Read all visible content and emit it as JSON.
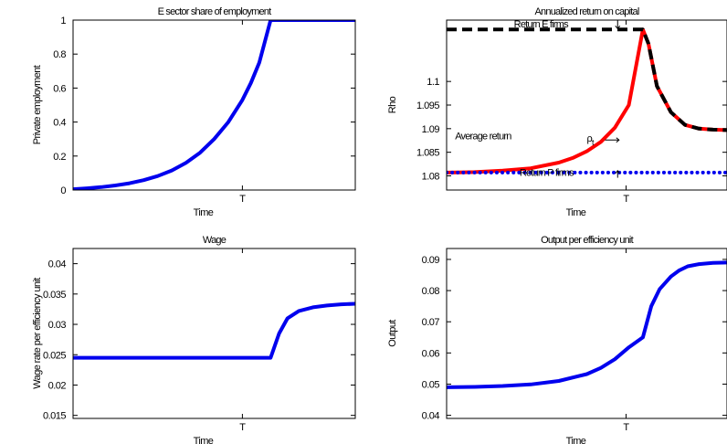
{
  "chart_data": [
    {
      "type": "line",
      "title": "E sector share of employment",
      "xlabel": "Time",
      "ylabel": "Private employment",
      "x_tick_labels": [
        "T"
      ],
      "xlim": [
        0,
        1
      ],
      "ylim": [
        0,
        1
      ],
      "yticks": [
        0,
        0.2,
        0.4,
        0.6,
        0.8,
        1
      ],
      "ytick_labels": [
        "0",
        "0.2",
        "0.4",
        "0.6",
        "0.8",
        "1"
      ],
      "series": [
        {
          "color": "#0000ee",
          "x": [
            0,
            0.05,
            0.1,
            0.15,
            0.2,
            0.25,
            0.3,
            0.35,
            0.4,
            0.45,
            0.5,
            0.55,
            0.6,
            0.63,
            0.66,
            0.7,
            0.8,
            0.9,
            1.0
          ],
          "y": [
            0.005,
            0.01,
            0.017,
            0.027,
            0.04,
            0.058,
            0.082,
            0.115,
            0.16,
            0.22,
            0.3,
            0.4,
            0.53,
            0.63,
            0.75,
            1.0,
            1.0,
            1.0,
            1.0
          ]
        }
      ]
    },
    {
      "type": "line",
      "title": "Annualized return on capital",
      "xlabel": "Time",
      "ylabel": "Rho",
      "x_tick_labels": [
        "T"
      ],
      "xlim": [
        0,
        1
      ],
      "ylim": [
        1.077,
        1.113
      ],
      "yticks": [
        1.08,
        1.085,
        1.09,
        1.095,
        1.1
      ],
      "ytick_labels": [
        "1.08",
        "1.085",
        "1.09",
        "1.095",
        "1.1"
      ],
      "series": [
        {
          "color": "#ff0000",
          "x": [
            0,
            0.1,
            0.2,
            0.3,
            0.4,
            0.45,
            0.5,
            0.55,
            0.6,
            0.65,
            0.7,
            0.72,
            0.75,
            0.8,
            0.85,
            0.9,
            0.95,
            1.0
          ],
          "y": [
            1.0807,
            1.0808,
            1.0811,
            1.0816,
            1.0828,
            1.0838,
            1.0852,
            1.0872,
            1.0902,
            1.095,
            1.111,
            1.108,
            1.099,
            1.0935,
            1.0908,
            1.09,
            1.0898,
            1.0897
          ]
        },
        {
          "color": "#000000",
          "x": [
            0,
            0.7,
            0.72,
            0.75,
            0.8,
            0.85,
            0.9,
            0.95,
            1.0
          ],
          "y": [
            1.111,
            1.111,
            1.108,
            1.099,
            1.0935,
            1.0908,
            1.09,
            1.0898,
            1.0897
          ]
        },
        {
          "color": "#0000ee",
          "x": [
            0,
            1
          ],
          "y": [
            1.0807,
            1.0807
          ]
        }
      ],
      "annotations": [
        {
          "text": "Return E firms",
          "x": 0.24,
          "y": 1.1115
        },
        {
          "text": "Average return",
          "x": 0.03,
          "y": 1.0877
        },
        {
          "text": "ρ",
          "sub": "t",
          "x": 0.5,
          "y": 1.0873
        },
        {
          "text": "Return P firms",
          "x": 0.26,
          "y": 1.08
        }
      ]
    },
    {
      "type": "line",
      "title": "Wage",
      "xlabel": "Time",
      "ylabel": "Wage rate per efficiency unit",
      "x_tick_labels": [
        "T"
      ],
      "xlim": [
        0,
        1
      ],
      "ylim": [
        0.0145,
        0.0425
      ],
      "yticks": [
        0.015,
        0.02,
        0.025,
        0.03,
        0.035,
        0.04
      ],
      "ytick_labels": [
        "0.015",
        "0.02",
        "0.025",
        "0.03",
        "0.035",
        "0.04"
      ],
      "series": [
        {
          "color": "#0000ee",
          "x": [
            0,
            0.6,
            0.7,
            0.73,
            0.76,
            0.8,
            0.85,
            0.9,
            0.95,
            1.0
          ],
          "y": [
            0.0245,
            0.0245,
            0.0245,
            0.0285,
            0.031,
            0.0322,
            0.0328,
            0.0331,
            0.0333,
            0.0334
          ]
        }
      ]
    },
    {
      "type": "line",
      "title": "Output per efficiency unit",
      "xlabel": "Time",
      "ylabel": "Output",
      "x_tick_labels": [
        "T"
      ],
      "xlim": [
        0,
        1
      ],
      "ylim": [
        0.039,
        0.0935
      ],
      "yticks": [
        0.04,
        0.05,
        0.06,
        0.07,
        0.08,
        0.09
      ],
      "ytick_labels": [
        "0.04",
        "0.05",
        "0.06",
        "0.07",
        "0.08",
        "0.09"
      ],
      "series": [
        {
          "color": "#0000ee",
          "x": [
            0,
            0.1,
            0.2,
            0.3,
            0.4,
            0.5,
            0.55,
            0.6,
            0.65,
            0.7,
            0.73,
            0.76,
            0.8,
            0.83,
            0.86,
            0.9,
            0.95,
            1.0
          ],
          "y": [
            0.049,
            0.0491,
            0.0494,
            0.0499,
            0.051,
            0.0532,
            0.0552,
            0.058,
            0.0618,
            0.065,
            0.075,
            0.0805,
            0.0845,
            0.0865,
            0.0878,
            0.0885,
            0.0889,
            0.089
          ]
        }
      ]
    }
  ]
}
